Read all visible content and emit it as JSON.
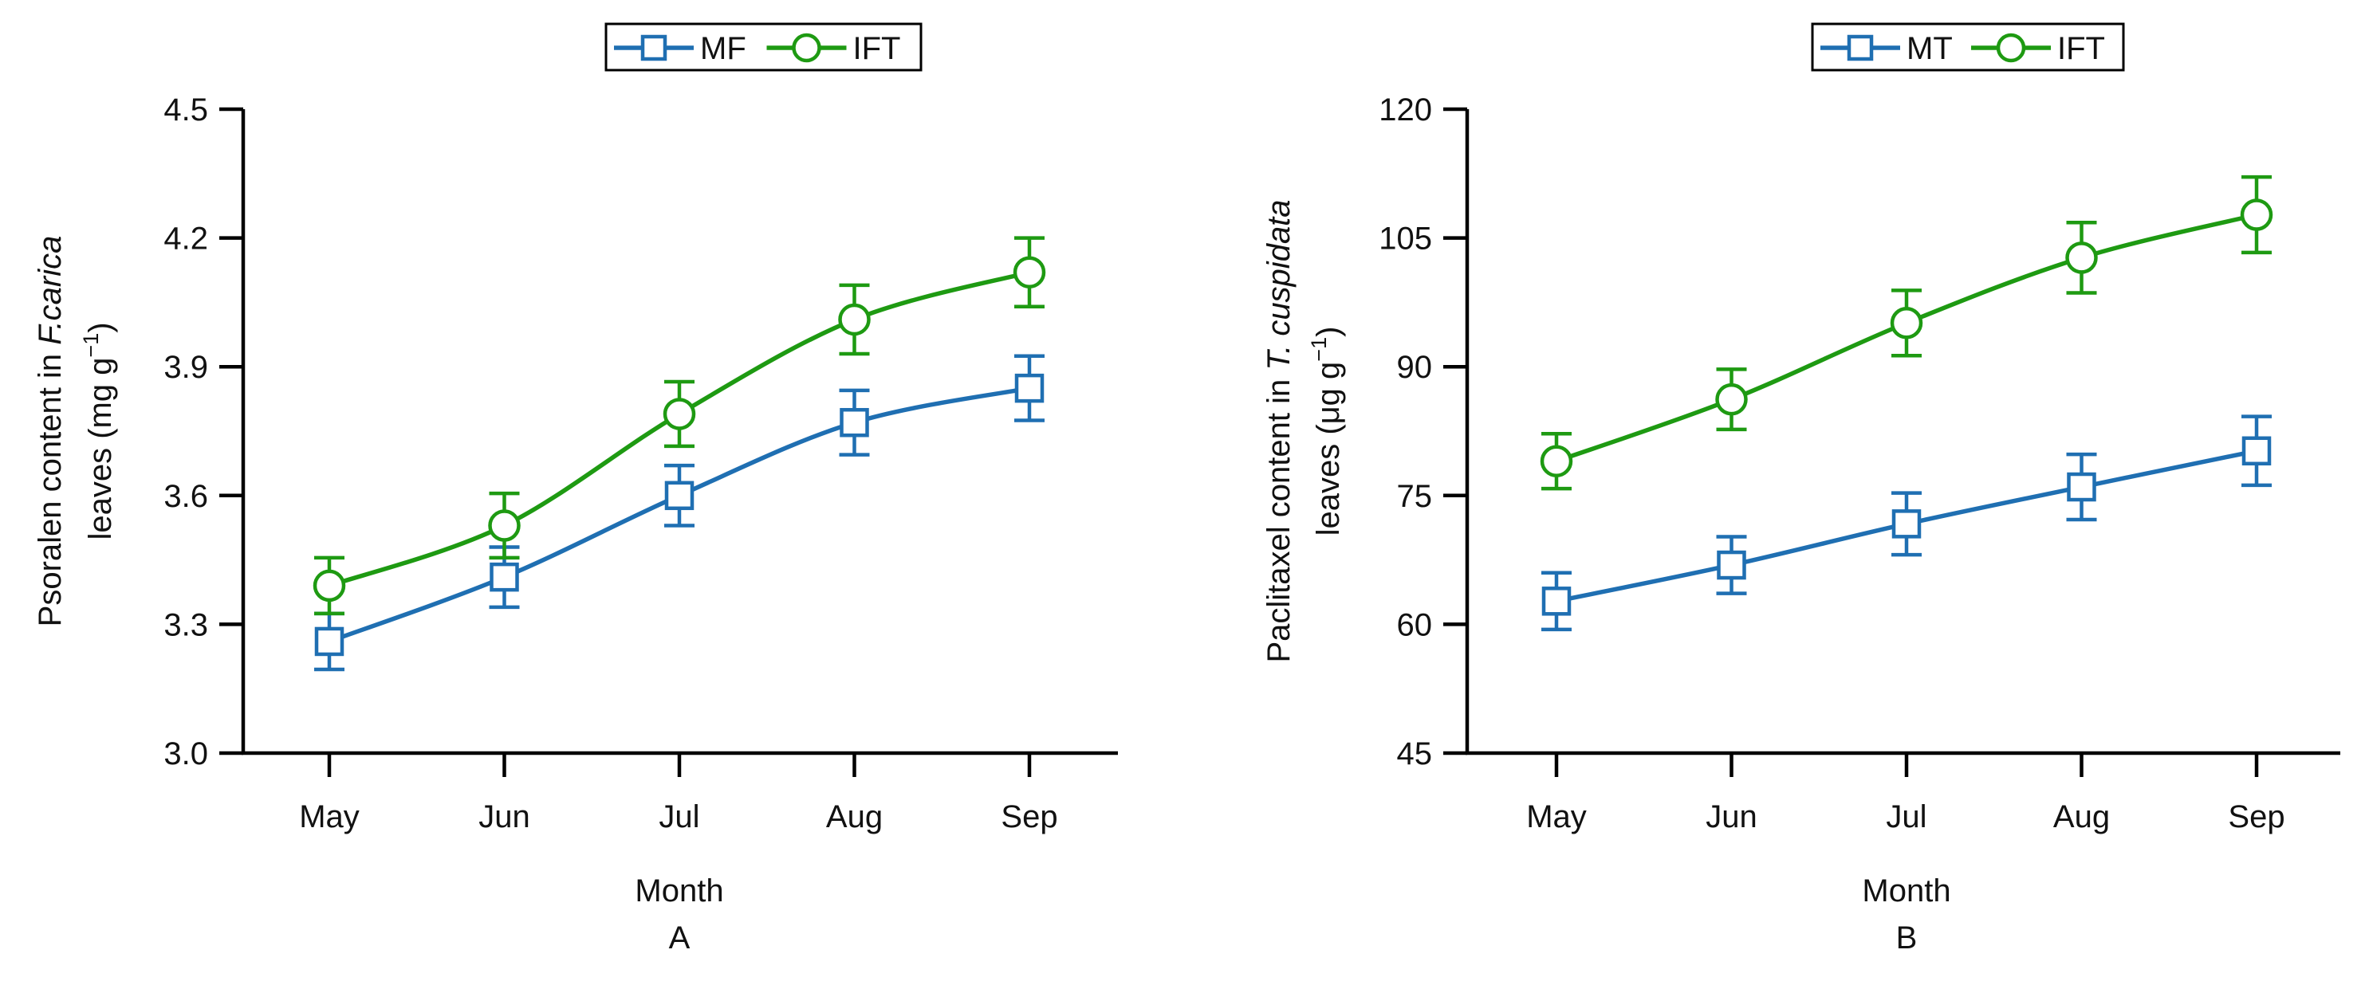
{
  "chart_data": [
    {
      "type": "line",
      "panel_label": "A",
      "xlabel": "Month",
      "ylabel": {
        "line1_prefix": "Psoralen content in ",
        "line1_italic": "F.carica",
        "line2_prefix": "leaves (mg g",
        "line2_superscript": "−1",
        "line2_suffix": ")"
      },
      "categories": [
        "May",
        "Jun",
        "Jul",
        "Aug",
        "Sep"
      ],
      "ylim": [
        3.0,
        4.5
      ],
      "yticks": [
        "3.0",
        "3.3",
        "3.6",
        "3.9",
        "4.2",
        "4.5"
      ],
      "legend_position": "top-center",
      "series": [
        {
          "name": "MF",
          "marker": "square",
          "color": "#1f6fb2",
          "values": [
            3.26,
            3.41,
            3.6,
            3.77,
            3.85
          ],
          "errors": [
            0.065,
            0.07,
            0.07,
            0.075,
            0.075
          ]
        },
        {
          "name": "IFT",
          "marker": "circle",
          "color": "#1e9a12",
          "values": [
            3.39,
            3.53,
            3.79,
            4.01,
            4.12
          ],
          "errors": [
            0.065,
            0.075,
            0.075,
            0.08,
            0.08
          ]
        }
      ]
    },
    {
      "type": "line",
      "panel_label": "B",
      "xlabel": "Month",
      "ylabel": {
        "line1_prefix": "Paclitaxel content in ",
        "line1_italic": "T. cuspidata",
        "line2_prefix": "leaves (μg g",
        "line2_superscript": "−1",
        "line2_suffix": ")"
      },
      "categories": [
        "May",
        "Jun",
        "Jul",
        "Aug",
        "Sep"
      ],
      "ylim": [
        45,
        120
      ],
      "yticks": [
        "45",
        "60",
        "75",
        "90",
        "105",
        "120"
      ],
      "legend_position": "top-center",
      "series": [
        {
          "name": "MT",
          "marker": "square",
          "color": "#1f6fb2",
          "values": [
            62.7,
            66.9,
            71.7,
            76.0,
            80.2
          ],
          "errors": [
            3.3,
            3.3,
            3.6,
            3.8,
            4.0
          ]
        },
        {
          "name": "IFT",
          "marker": "circle",
          "color": "#1e9a12",
          "values": [
            79.0,
            86.2,
            95.1,
            102.7,
            107.7
          ],
          "errors": [
            3.2,
            3.5,
            3.8,
            4.1,
            4.4
          ]
        }
      ]
    }
  ]
}
